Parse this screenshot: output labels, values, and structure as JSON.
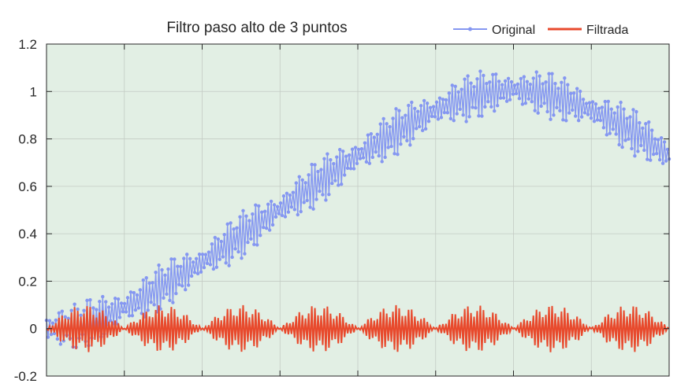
{
  "chart_data": {
    "type": "line",
    "title": "Filtro paso alto de 3 puntos",
    "xlabel": "",
    "ylabel": "",
    "xlim": [
      0,
      1
    ],
    "ylim": [
      -0.2,
      1.2
    ],
    "yticks": [
      -0.2,
      0,
      0.2,
      0.4,
      0.6,
      0.8,
      1,
      1.2
    ],
    "ytick_labels": [
      "-0.2",
      "0",
      "0.2",
      "0.4",
      "0.6",
      "0.8",
      "1",
      "1.2"
    ],
    "xticks": [
      0,
      0.125,
      0.25,
      0.375,
      0.5,
      0.625,
      0.75,
      0.875,
      1
    ],
    "grid": true,
    "legend_position": "top-right",
    "colors": {
      "plot_background": "#e2efe4",
      "grid": "#c4cbc4",
      "axis": "#262626",
      "original": "#8597f1",
      "filtered": "#e84a2d"
    },
    "series": [
      {
        "name": "Original",
        "color": "#8597f1",
        "marker": "dot",
        "envelope_trend": {
          "x": [
            0,
            0.05,
            0.1,
            0.15,
            0.2,
            0.25,
            0.3,
            0.35,
            0.4,
            0.45,
            0.5,
            0.55,
            0.6,
            0.65,
            0.7,
            0.75,
            0.8,
            0.85,
            0.9,
            0.95,
            1
          ],
          "y": [
            0,
            0.01,
            0.06,
            0.12,
            0.2,
            0.28,
            0.37,
            0.46,
            0.55,
            0.64,
            0.73,
            0.81,
            0.89,
            0.95,
            0.99,
            1.01,
            0.99,
            0.95,
            0.89,
            0.82,
            0.73
          ]
        },
        "oscillation_amplitude": 0.1
      },
      {
        "name": "Filtrada",
        "color": "#e84a2d",
        "marker": "none",
        "center": 0,
        "oscillation_amplitude": 0.1,
        "beat_groups": 8
      }
    ]
  }
}
